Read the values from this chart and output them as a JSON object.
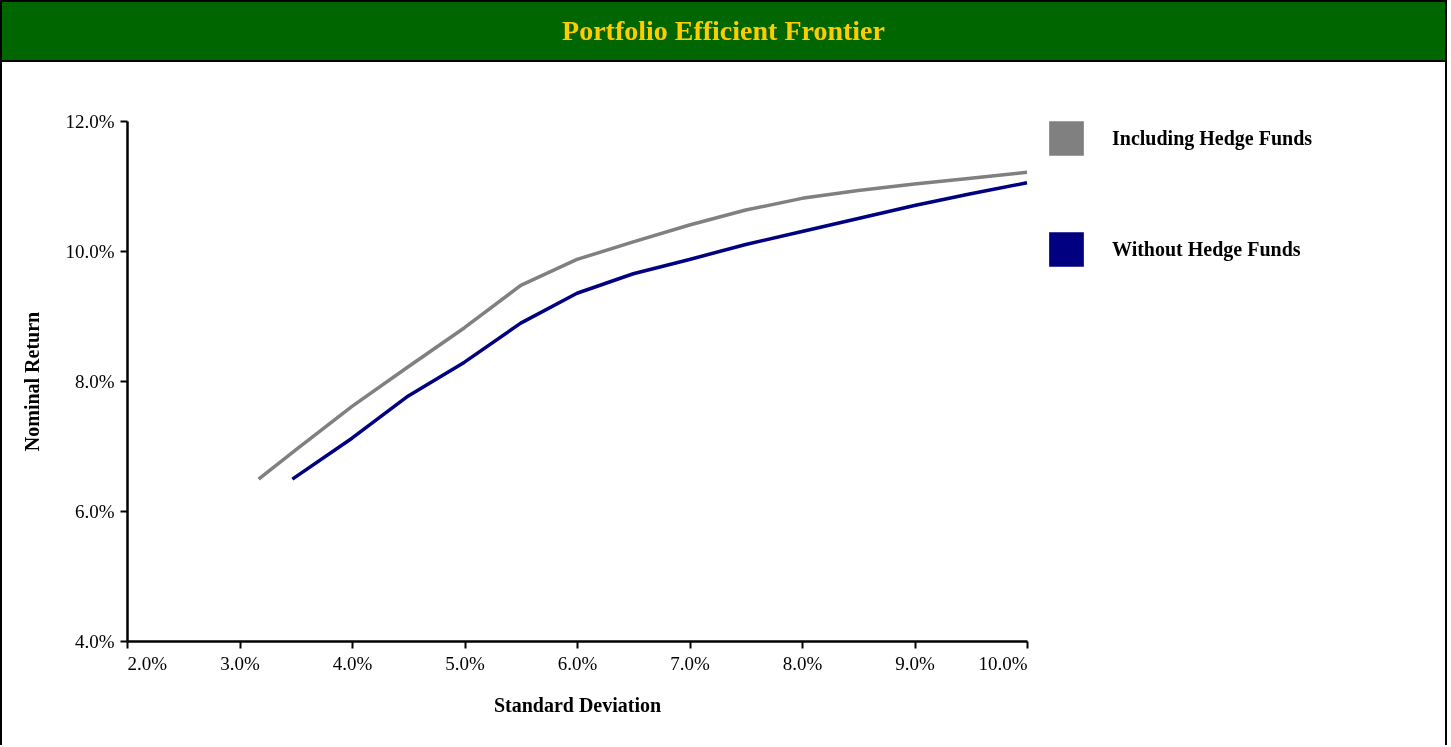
{
  "chart_data": {
    "type": "line",
    "title": "Portfolio Efficient Frontier",
    "xlabel": "Standard Deviation",
    "ylabel": "Nominal Return",
    "xlim": [
      2,
      10
    ],
    "ylim": [
      4,
      12
    ],
    "xticks": [
      {
        "value": 2,
        "label": "2.0%"
      },
      {
        "value": 3,
        "label": "3.0%"
      },
      {
        "value": 4,
        "label": "4.0%"
      },
      {
        "value": 5,
        "label": "5.0%"
      },
      {
        "value": 6,
        "label": "6.0%"
      },
      {
        "value": 7,
        "label": "7.0%"
      },
      {
        "value": 8,
        "label": "8.0%"
      },
      {
        "value": 9,
        "label": "9.0%"
      },
      {
        "value": 10,
        "label": "10.0%"
      }
    ],
    "yticks": [
      {
        "value": 4,
        "label": "4.0%"
      },
      {
        "value": 6,
        "label": "6.0%"
      },
      {
        "value": 8,
        "label": "8.0%"
      },
      {
        "value": 10,
        "label": "10.0%"
      },
      {
        "value": 12,
        "label": "12.0%"
      }
    ],
    "grid": false,
    "legend": "right",
    "marker": "none",
    "line_style": "solid",
    "series": [
      {
        "name": "Including Hedge Funds",
        "color": "#808080",
        "x": [
          3.17,
          3.5,
          4.0,
          4.5,
          5.0,
          5.5,
          6.0,
          6.5,
          7.0,
          7.5,
          8.0,
          8.5,
          9.0,
          9.5,
          10.0
        ],
        "values": [
          6.49,
          6.94,
          7.61,
          8.22,
          8.82,
          9.47,
          9.87,
          10.14,
          10.4,
          10.63,
          10.81,
          10.93,
          11.03,
          11.12,
          11.21
        ]
      },
      {
        "name": "Without Hedge Funds",
        "color": "#000080",
        "x": [
          3.47,
          4.0,
          4.5,
          5.0,
          5.5,
          6.0,
          6.5,
          7.0,
          7.5,
          8.0,
          8.5,
          9.0,
          9.5,
          10.0
        ],
        "values": [
          6.49,
          7.12,
          7.77,
          8.29,
          8.89,
          9.35,
          9.65,
          9.87,
          10.1,
          10.3,
          10.5,
          10.7,
          10.88,
          11.05
        ]
      }
    ]
  }
}
